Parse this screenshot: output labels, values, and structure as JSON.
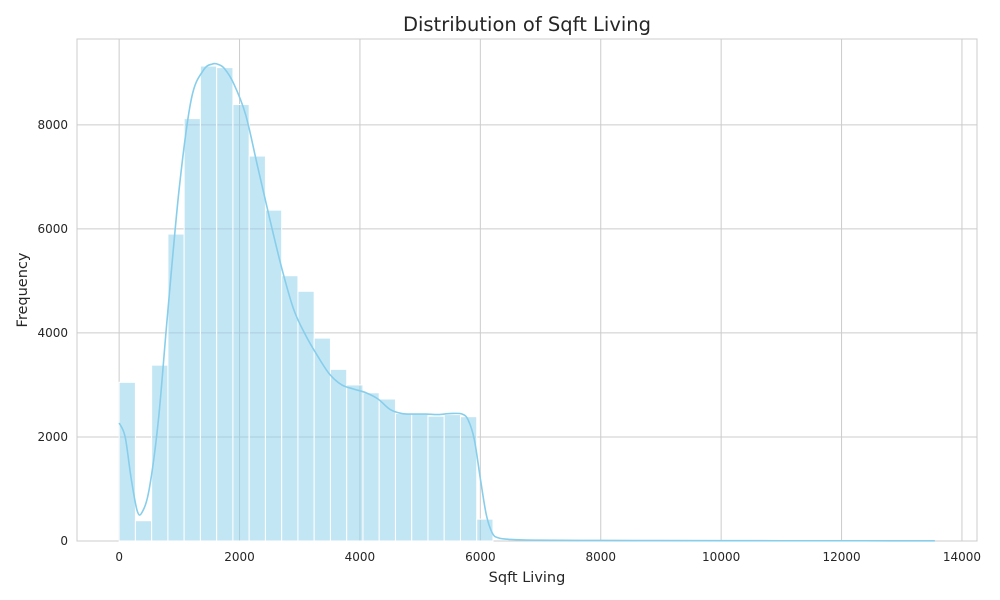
{
  "chart_data": {
    "type": "bar",
    "title": "Distribution of Sqft Living",
    "xlabel": "Sqft Living",
    "ylabel": "Frequency",
    "xlim": [
      -700,
      14250
    ],
    "ylim": [
      0,
      9650
    ],
    "grid": true,
    "x_ticks": [
      0,
      2000,
      4000,
      6000,
      8000,
      10000,
      12000,
      14000
    ],
    "y_ticks": [
      0,
      2000,
      4000,
      6000,
      8000
    ],
    "bar_color": "#87ceeb",
    "bar_opacity": 0.5,
    "kde_color": "#87ceeb",
    "bins": [
      {
        "x0": 0,
        "x1": 270,
        "count": 3050
      },
      {
        "x0": 270,
        "x1": 540,
        "count": 390
      },
      {
        "x0": 540,
        "x1": 810,
        "count": 3380
      },
      {
        "x0": 810,
        "x1": 1080,
        "count": 5900
      },
      {
        "x0": 1080,
        "x1": 1350,
        "count": 8120
      },
      {
        "x0": 1350,
        "x1": 1620,
        "count": 9130
      },
      {
        "x0": 1620,
        "x1": 1890,
        "count": 9100
      },
      {
        "x0": 1890,
        "x1": 2160,
        "count": 8390
      },
      {
        "x0": 2160,
        "x1": 2430,
        "count": 7400
      },
      {
        "x0": 2430,
        "x1": 2700,
        "count": 6360
      },
      {
        "x0": 2700,
        "x1": 2970,
        "count": 5100
      },
      {
        "x0": 2970,
        "x1": 3240,
        "count": 4800
      },
      {
        "x0": 3240,
        "x1": 3510,
        "count": 3900
      },
      {
        "x0": 3510,
        "x1": 3780,
        "count": 3300
      },
      {
        "x0": 3780,
        "x1": 4050,
        "count": 3000
      },
      {
        "x0": 4050,
        "x1": 4320,
        "count": 2850
      },
      {
        "x0": 4320,
        "x1": 4590,
        "count": 2730
      },
      {
        "x0": 4590,
        "x1": 4860,
        "count": 2450
      },
      {
        "x0": 4860,
        "x1": 5130,
        "count": 2440
      },
      {
        "x0": 5130,
        "x1": 5400,
        "count": 2400
      },
      {
        "x0": 5400,
        "x1": 5670,
        "count": 2430
      },
      {
        "x0": 5670,
        "x1": 5940,
        "count": 2390
      },
      {
        "x0": 5940,
        "x1": 6210,
        "count": 420
      }
    ],
    "kde": {
      "x": [
        0,
        100,
        200,
        300,
        380,
        500,
        650,
        800,
        1000,
        1200,
        1400,
        1550,
        1650,
        1750,
        1900,
        2100,
        2300,
        2500,
        2700,
        2900,
        3100,
        3300,
        3500,
        3700,
        3900,
        4100,
        4300,
        4500,
        4700,
        4900,
        5100,
        5300,
        5500,
        5700,
        5800,
        5900,
        6000,
        6100,
        6200,
        6300,
        6500,
        7000,
        8000,
        9000,
        10000,
        11000,
        12000,
        13000,
        13550
      ],
      "y": [
        2270,
        2000,
        1200,
        580,
        550,
        1000,
        2300,
        4300,
        6800,
        8500,
        9050,
        9170,
        9160,
        9080,
        8800,
        8200,
        7200,
        6200,
        5250,
        4450,
        3950,
        3550,
        3200,
        3000,
        2920,
        2850,
        2730,
        2530,
        2450,
        2440,
        2440,
        2430,
        2450,
        2440,
        2320,
        1950,
        1200,
        500,
        150,
        60,
        30,
        15,
        10,
        8,
        6,
        5,
        5,
        4,
        3
      ]
    }
  }
}
